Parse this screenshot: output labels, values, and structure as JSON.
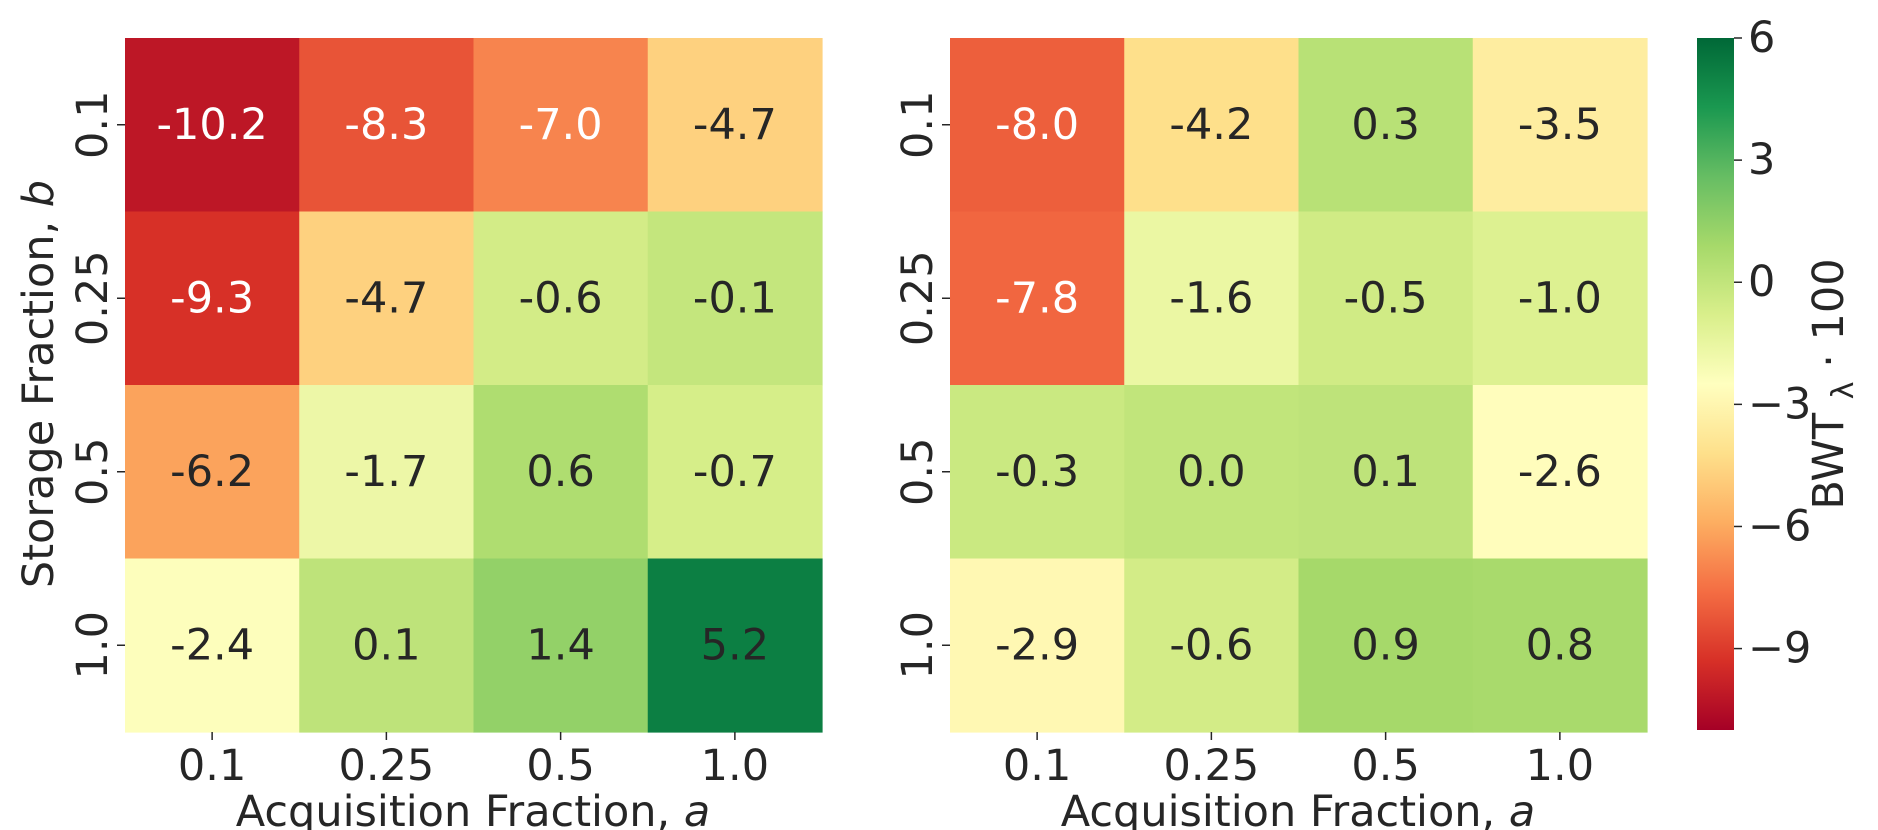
{
  "chart_data": [
    {
      "type": "heatmap",
      "title": "",
      "xlabel": "Acquisition Fraction,",
      "xlabel_var": "a",
      "ylabel": "Storage Fraction,",
      "ylabel_var": "b",
      "x_categories": [
        "0.1",
        "0.25",
        "0.5",
        "1.0"
      ],
      "y_categories": [
        "0.1",
        "0.25",
        "0.5",
        "1.0"
      ],
      "values": [
        [
          -10.2,
          -8.3,
          -7.0,
          -4.7
        ],
        [
          -9.3,
          -4.7,
          -0.6,
          -0.1
        ],
        [
          -6.2,
          -1.7,
          0.6,
          -0.7
        ],
        [
          -2.4,
          0.1,
          1.4,
          5.2
        ]
      ],
      "value_format": "one decimal",
      "colormap": "RdYlGn",
      "vmin": -11,
      "vmax": 6
    },
    {
      "type": "heatmap",
      "title": "",
      "xlabel": "Acquisition Fraction,",
      "xlabel_var": "a",
      "ylabel": "",
      "x_categories": [
        "0.1",
        "0.25",
        "0.5",
        "1.0"
      ],
      "y_categories": [
        "0.1",
        "0.25",
        "0.5",
        "1.0"
      ],
      "values": [
        [
          -8.0,
          -4.2,
          0.3,
          -3.5
        ],
        [
          -7.8,
          -1.6,
          -0.5,
          -1.0
        ],
        [
          -0.3,
          0.0,
          0.1,
          -2.6
        ],
        [
          -2.9,
          -0.6,
          0.9,
          0.8
        ]
      ],
      "value_format": "one decimal",
      "colormap": "RdYlGn",
      "vmin": -11,
      "vmax": 6
    }
  ],
  "colorbar": {
    "label_main": "BWT",
    "label_sub": "λ",
    "label_suffix": " · 100",
    "ticks": [
      6,
      3,
      0,
      -3,
      -6,
      -9
    ],
    "tick_labels": [
      "6",
      "3",
      "0",
      "−3",
      "−6",
      "−9"
    ],
    "vmin": -11,
    "vmax": 6
  },
  "colors": {
    "text_dark": "#262626",
    "text_light": "#ffffff",
    "colormap_stops": [
      "#a50026",
      "#d73027",
      "#f46d43",
      "#fdae61",
      "#fee08b",
      "#ffffbf",
      "#d9ef8b",
      "#a6d96a",
      "#66bd63",
      "#1a9850",
      "#006837"
    ]
  }
}
